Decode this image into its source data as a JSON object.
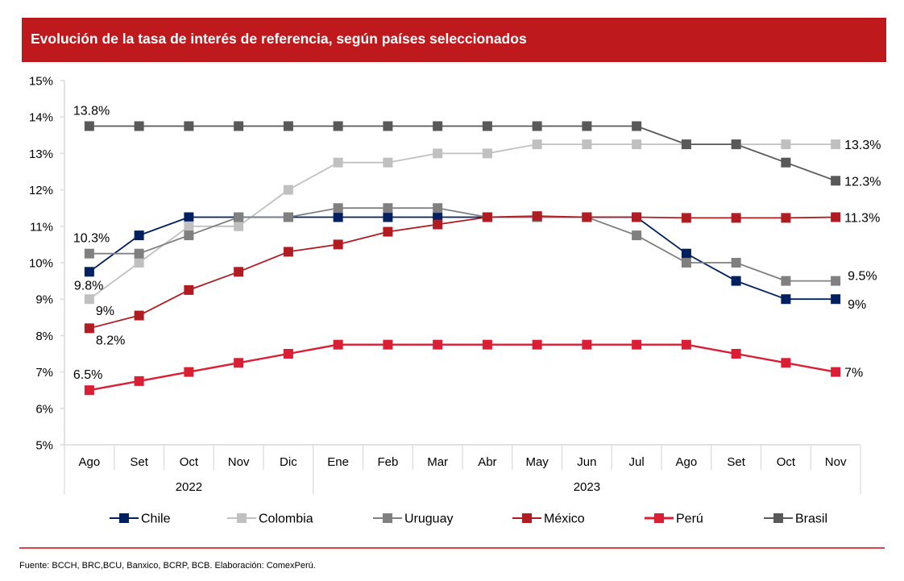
{
  "title": "Evolución de la tasa de interés de referencia, según países seleccionados",
  "footer": "Fuente: BCCH, BRC,BCU, Banxico, BCRP, BCB. Elaboración: ComexPerú.",
  "chart_data": {
    "type": "line",
    "title": "Evolución de la tasa de interés de referencia, según países seleccionados",
    "xlabel": "",
    "ylabel": "",
    "categories": [
      "Ago",
      "Set",
      "Oct",
      "Nov",
      "Dic",
      "Ene",
      "Feb",
      "Mar",
      "Abr",
      "May",
      "Jun",
      "Jul",
      "Ago",
      "Set",
      "Oct",
      "Nov"
    ],
    "year_groups": [
      {
        "label": "2022",
        "start": 0,
        "count": 5
      },
      {
        "label": "2023",
        "start": 5,
        "count": 11
      }
    ],
    "ylim": [
      5,
      15
    ],
    "yticks": [
      5,
      6,
      7,
      8,
      9,
      10,
      11,
      12,
      13,
      14,
      15
    ],
    "ytick_labels": [
      "5%",
      "6%",
      "7%",
      "8%",
      "9%",
      "10%",
      "11%",
      "12%",
      "13%",
      "14%",
      "15%"
    ],
    "grid": false,
    "legend_position": "bottom",
    "series": [
      {
        "name": "Chile",
        "color": "#002060",
        "values": [
          9.75,
          10.75,
          11.25,
          11.25,
          11.25,
          11.25,
          11.25,
          11.25,
          11.25,
          11.25,
          11.25,
          11.25,
          10.25,
          9.5,
          9.0,
          9.0
        ],
        "labels": [
          {
            "index": 0,
            "text": "9.8%",
            "pos": "below-left"
          },
          {
            "index": 15,
            "text": "9%",
            "pos": "right-low"
          }
        ]
      },
      {
        "name": "Colombia",
        "color": "#C0C0C0",
        "values": [
          9.0,
          10.0,
          11.0,
          11.0,
          12.0,
          12.75,
          12.75,
          13.0,
          13.0,
          13.25,
          13.25,
          13.25,
          13.25,
          13.25,
          13.25,
          13.25
        ],
        "labels": [
          {
            "index": 0,
            "text": "9%",
            "pos": "below-right"
          },
          {
            "index": 15,
            "text": "13.3%",
            "pos": "right"
          }
        ]
      },
      {
        "name": "Uruguay",
        "color": "#808080",
        "values": [
          10.25,
          10.25,
          10.75,
          11.25,
          11.25,
          11.5,
          11.5,
          11.5,
          11.25,
          11.25,
          11.25,
          10.75,
          10.0,
          10.0,
          9.5,
          9.5
        ],
        "labels": [
          {
            "index": 0,
            "text": "10.3%",
            "pos": "above"
          },
          {
            "index": 15,
            "text": "9.5%",
            "pos": "right-high"
          }
        ]
      },
      {
        "name": "México",
        "color": "#B01C22",
        "values": [
          8.2,
          8.55,
          9.25,
          9.75,
          10.3,
          10.5,
          10.85,
          11.05,
          11.25,
          11.28,
          11.25,
          11.25,
          11.23,
          11.23,
          11.23,
          11.25
        ],
        "labels": [
          {
            "index": 0,
            "text": "8.2%",
            "pos": "below-right"
          },
          {
            "index": 15,
            "text": "11.3%",
            "pos": "right"
          }
        ]
      },
      {
        "name": "Perú",
        "color": "#DA1F35",
        "values": [
          6.5,
          6.75,
          7.0,
          7.25,
          7.5,
          7.75,
          7.75,
          7.75,
          7.75,
          7.75,
          7.75,
          7.75,
          7.75,
          7.5,
          7.25,
          7.0
        ],
        "labels": [
          {
            "index": 0,
            "text": "6.5%",
            "pos": "above"
          },
          {
            "index": 15,
            "text": "7%",
            "pos": "right"
          }
        ]
      },
      {
        "name": "Brasil",
        "color": "#595959",
        "values": [
          13.75,
          13.75,
          13.75,
          13.75,
          13.75,
          13.75,
          13.75,
          13.75,
          13.75,
          13.75,
          13.75,
          13.75,
          13.25,
          13.25,
          12.75,
          12.25
        ],
        "labels": [
          {
            "index": 0,
            "text": "13.8%",
            "pos": "above"
          },
          {
            "index": 15,
            "text": "12.3%",
            "pos": "right"
          }
        ]
      }
    ]
  }
}
